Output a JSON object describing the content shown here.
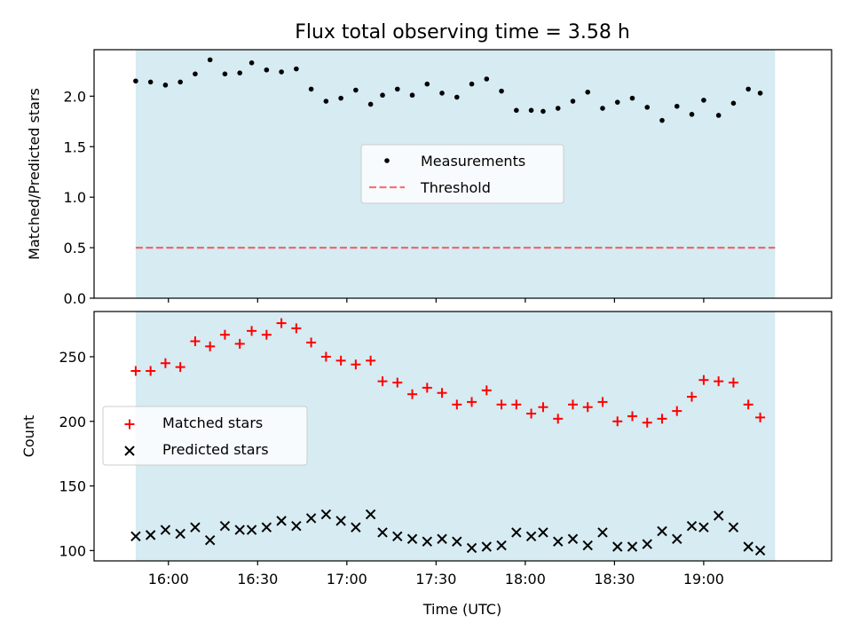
{
  "chart_data": {
    "title": "Flux total observing time = 3.58 h",
    "xlabel": "Time (UTC)",
    "x_ticks": [
      "16:00",
      "16:30",
      "17:00",
      "17:30",
      "18:00",
      "18:30",
      "19:00"
    ],
    "x_tick_minutes": [
      960,
      990,
      1020,
      1050,
      1080,
      1110,
      1140
    ],
    "xlim": [
      935,
      1183
    ],
    "shaded_span": {
      "start": "15:49",
      "end": "19:24",
      "color": "#add8e6"
    },
    "times": [
      "15:49",
      "15:54",
      "15:59",
      "16:04",
      "16:09",
      "16:14",
      "16:19",
      "16:24",
      "16:28",
      "16:33",
      "16:38",
      "16:43",
      "16:48",
      "16:53",
      "16:58",
      "17:03",
      "17:08",
      "17:12",
      "17:17",
      "17:22",
      "17:27",
      "17:32",
      "17:37",
      "17:42",
      "17:47",
      "17:52",
      "17:57",
      "18:02",
      "18:06",
      "18:11",
      "18:16",
      "18:21",
      "18:26",
      "18:31",
      "18:36",
      "18:41",
      "18:46",
      "18:51",
      "18:56",
      "19:00",
      "19:05",
      "19:10",
      "19:15",
      "19:19"
    ],
    "panels": [
      {
        "type": "scatter",
        "ylabel": "Matched/Predicted stars",
        "ylim": [
          0,
          2.46
        ],
        "yticks": [
          "0.0",
          "0.5",
          "1.0",
          "1.5",
          "2.0"
        ],
        "ytick_values": [
          0,
          0.5,
          1.0,
          1.5,
          2.0
        ],
        "legend": {
          "placement": "center",
          "entries": [
            "Measurements",
            "Threshold"
          ]
        },
        "series": [
          {
            "name": "Measurements",
            "marker": "dot",
            "color": "#000000",
            "values": [
              2.15,
              2.14,
              2.11,
              2.14,
              2.22,
              2.36,
              2.22,
              2.23,
              2.33,
              2.26,
              2.24,
              2.27,
              2.07,
              1.95,
              1.98,
              2.06,
              1.92,
              2.01,
              2.07,
              2.01,
              2.12,
              2.03,
              1.99,
              2.12,
              2.17,
              2.05,
              1.86,
              1.86,
              1.85,
              1.88,
              1.95,
              2.04,
              1.88,
              1.94,
              1.98,
              1.89,
              1.76,
              1.9,
              1.82,
              1.96,
              1.81,
              1.93,
              2.07,
              2.03
            ]
          },
          {
            "name": "Threshold",
            "marker": "dashed-line",
            "color": "#ff0000",
            "value": 0.5
          }
        ]
      },
      {
        "type": "scatter",
        "ylabel": "Count",
        "ylim": [
          92,
          285
        ],
        "yticks": [
          "100",
          "150",
          "200",
          "250"
        ],
        "ytick_values": [
          100,
          150,
          200,
          250
        ],
        "legend": {
          "placement": "center-left",
          "entries": [
            "Matched stars",
            "Predicted stars"
          ]
        },
        "series": [
          {
            "name": "Matched stars",
            "marker": "plus",
            "color": "#ff0000",
            "values": [
              239,
              239,
              245,
              242,
              262,
              258,
              267,
              260,
              270,
              267,
              276,
              272,
              261,
              250,
              247,
              244,
              247,
              231,
              230,
              221,
              226,
              222,
              213,
              215,
              224,
              213,
              213,
              206,
              211,
              202,
              213,
              211,
              215,
              200,
              204,
              199,
              202,
              208,
              219,
              232,
              231,
              230,
              213,
              203
            ]
          },
          {
            "name": "Predicted stars",
            "marker": "x",
            "color": "#000000",
            "values": [
              111,
              112,
              116,
              113,
              118,
              108,
              119,
              116,
              116,
              118,
              123,
              119,
              125,
              128,
              123,
              118,
              128,
              114,
              111,
              109,
              107,
              109,
              107,
              102,
              103,
              104,
              114,
              111,
              114,
              107,
              109,
              104,
              114,
              103,
              103,
              105,
              115,
              109,
              119,
              118,
              127,
              118,
              103,
              100
            ]
          }
        ]
      }
    ]
  }
}
